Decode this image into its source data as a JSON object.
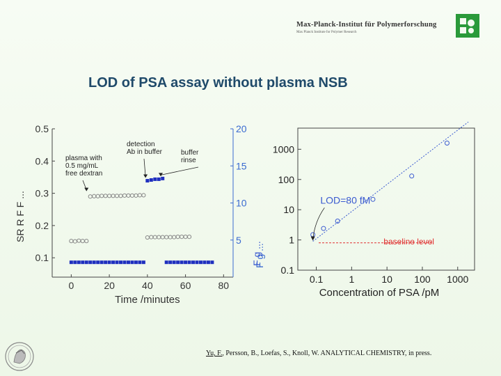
{
  "header": {
    "institute": "Max-Planck-Institut für Polymerforschung",
    "institute_sub": "Max Planck Institute for Polymer Research"
  },
  "slide": {
    "title": "LOD of PSA assay without plasma NSB"
  },
  "reference": {
    "author_underlined": "Yu, F.",
    "rest": ", Persson, B., Loefas, S., Knoll, W. ANALYTICAL CHEMISTRY, in press."
  },
  "colors": {
    "title": "#1f4a6a",
    "series_blue": "#1f2fbf",
    "hollow": "#888888",
    "left_axis": "#333333",
    "right_axis": "#3a6ad0",
    "baseline": "#e03030",
    "fit": "#3a5ad0",
    "logo": "#2a9a3a"
  },
  "chart_data": [
    {
      "type": "scatter",
      "xlabel": "Time /minutes",
      "xlim": [
        -10,
        85
      ],
      "x_ticks": [
        "0",
        "20",
        "40",
        "60",
        "80"
      ],
      "left_ylim": [
        0.04,
        0.5
      ],
      "left_ticks": [
        "0.1",
        "0.2",
        "0.3",
        "0.4",
        "0.5"
      ],
      "left_ylabel": "SR R F F ...",
      "right_ylim": [
        0,
        20
      ],
      "right_ticks": [
        "5",
        "10",
        "15",
        "20"
      ],
      "right_ylabel": "F g ...",
      "annotations": [
        {
          "text_lines": [
            "plasma with",
            "0.5 mg/mL",
            "free dextran"
          ],
          "x": 8,
          "y": 0.305
        },
        {
          "text_lines": [
            "detection",
            "Ab in buffer"
          ],
          "x": 38,
          "y": 0.345
        },
        {
          "text_lines": [
            "buffer",
            "rinse"
          ],
          "x": 46,
          "y": 0.37
        }
      ],
      "series": [
        {
          "marker": "hollow-circle",
          "axis": "left",
          "x": [
            0,
            2,
            4,
            6,
            8,
            10,
            12,
            14,
            16,
            18,
            20,
            22,
            24,
            26,
            28,
            30,
            32,
            34,
            36,
            38,
            40,
            42,
            44,
            46,
            48,
            50,
            52,
            54,
            56,
            58,
            60,
            62
          ],
          "y": [
            0.152,
            0.151,
            0.153,
            0.152,
            0.152,
            0.29,
            0.291,
            0.291,
            0.292,
            0.292,
            0.292,
            0.292,
            0.292,
            0.292,
            0.293,
            0.293,
            0.293,
            0.293,
            0.294,
            0.294,
            0.163,
            0.164,
            0.164,
            0.164,
            0.164,
            0.164,
            0.164,
            0.164,
            0.165,
            0.165,
            0.165,
            0.165
          ]
        },
        {
          "marker": "filled-square",
          "axis": "right",
          "x": [
            0,
            2,
            4,
            6,
            8,
            10,
            12,
            14,
            16,
            18,
            20,
            22,
            24,
            26,
            28,
            30,
            32,
            34,
            36,
            38,
            40,
            42,
            44,
            46,
            48,
            50,
            52,
            54,
            56,
            58,
            60,
            62,
            64,
            66,
            68,
            70,
            72,
            74
          ],
          "y": [
            2.0,
            2.0,
            2.0,
            2.0,
            2.0,
            2.0,
            2.0,
            2.0,
            2.0,
            2.0,
            2.0,
            2.0,
            2.0,
            2.0,
            2.0,
            2.0,
            2.0,
            2.0,
            2.0,
            2.0,
            13.0,
            13.1,
            13.2,
            13.2,
            13.3,
            2.0,
            2.0,
            2.0,
            2.0,
            2.0,
            2.0,
            2.0,
            2.0,
            2.0,
            2.0,
            2.0,
            2.0,
            2.0
          ]
        }
      ]
    },
    {
      "type": "scatter",
      "xlabel": "Concentration of PSA /pM",
      "ylabel": "F g ...",
      "xscale": "log",
      "yscale": "log",
      "xlim": [
        0.03,
        3000
      ],
      "ylim": [
        0.1,
        5000
      ],
      "x_ticks": [
        "0.1",
        "1",
        "10",
        "100",
        "1000"
      ],
      "y_ticks": [
        "0.1",
        "1",
        "10",
        "100",
        "1000"
      ],
      "annotations": [
        "LOD=80 fM",
        "baseline level"
      ],
      "series": [
        {
          "marker": "hollow-circle",
          "x": [
            0.08,
            0.16,
            0.4,
            4,
            50,
            500
          ],
          "y": [
            1.5,
            2.4,
            4.2,
            22,
            130,
            1600
          ]
        }
      ],
      "baseline": 0.8,
      "fit_line": {
        "x": [
          0.08,
          2000
        ],
        "y": [
          0.9,
          8000
        ]
      }
    }
  ]
}
